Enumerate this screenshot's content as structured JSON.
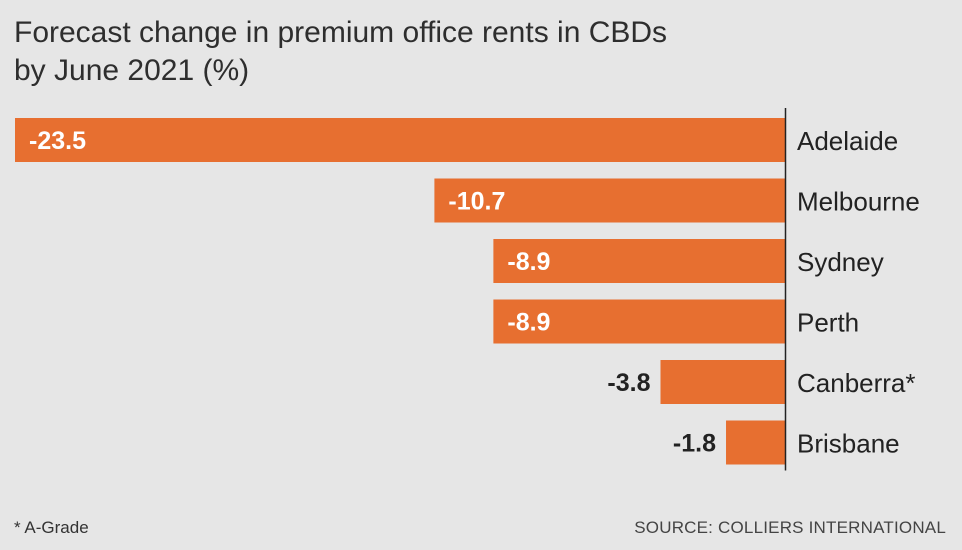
{
  "chart_data": {
    "type": "bar",
    "orientation": "horizontal",
    "title": "Forecast change in premium office rents in CBDs",
    "subtitle": "by June 2021 (%)",
    "categories": [
      "Adelaide",
      "Melbourne",
      "Sydney",
      "Perth",
      "Canberra*",
      "Brisbane"
    ],
    "values": [
      -23.5,
      -10.7,
      -8.9,
      -8.9,
      -3.8,
      -1.8
    ],
    "value_labels": [
      "-23.5",
      "-10.7",
      "-8.9",
      "-8.9",
      "-3.8",
      "-1.8"
    ],
    "xlim": [
      -23.5,
      0
    ],
    "grid": false,
    "bar_color": "#e76f30",
    "axis_color": "#222222"
  },
  "footnote": "* A-Grade",
  "source": "SOURCE: COLLIERS INTERNATIONAL"
}
